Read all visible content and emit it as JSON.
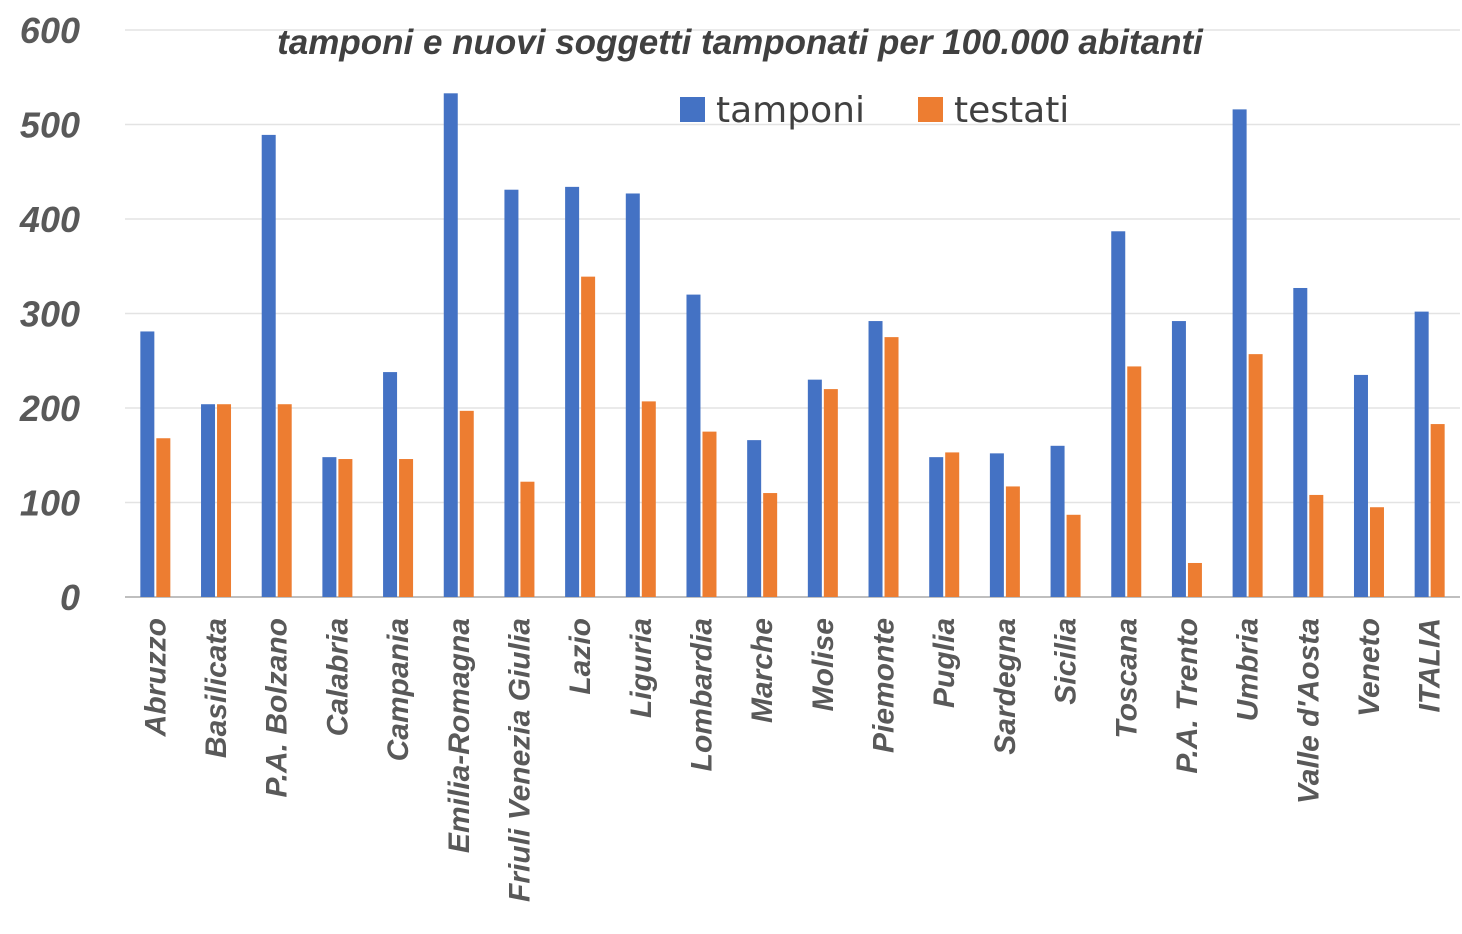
{
  "chart_data": {
    "type": "bar",
    "title": "tamponi e nuovi soggetti tamponati per 100.000 abitanti",
    "xlabel": "",
    "ylabel": "",
    "ylim": [
      0,
      600
    ],
    "yticks": [
      0,
      100,
      200,
      300,
      400,
      500,
      600
    ],
    "grid": true,
    "legend_position": "top-center",
    "categories": [
      "Abruzzo",
      "Basilicata",
      "P.A. Bolzano",
      "Calabria",
      "Campania",
      "Emilia-Romagna",
      "Friuli Venezia Giulia",
      "Lazio",
      "Liguria",
      "Lombardia",
      "Marche",
      "Molise",
      "Piemonte",
      "Puglia",
      "Sardegna",
      "Sicilia",
      "Toscana",
      "P.A. Trento",
      "Umbria",
      "Valle d'Aosta",
      "Veneto",
      "ITALIA"
    ],
    "series": [
      {
        "name": "tamponi",
        "color": "#4472C4",
        "values": [
          281,
          204,
          489,
          148,
          238,
          533,
          431,
          434,
          427,
          320,
          166,
          230,
          292,
          148,
          152,
          160,
          387,
          292,
          516,
          327,
          235,
          302
        ]
      },
      {
        "name": "testati",
        "color": "#ED7D31",
        "values": [
          168,
          204,
          204,
          146,
          146,
          197,
          122,
          339,
          207,
          175,
          110,
          220,
          275,
          153,
          117,
          87,
          244,
          36,
          257,
          108,
          95,
          183
        ]
      }
    ]
  }
}
